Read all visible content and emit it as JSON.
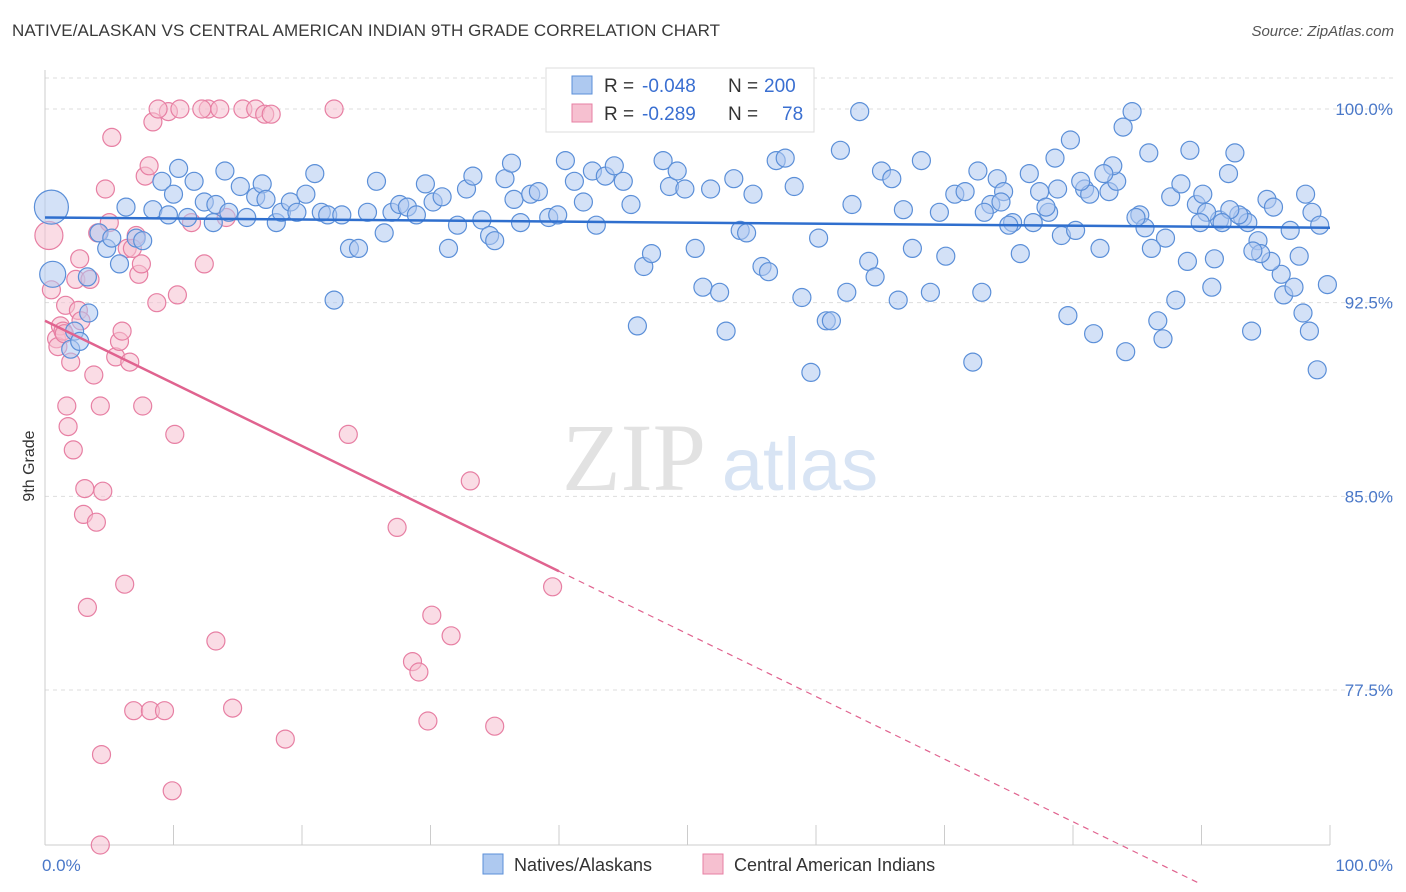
{
  "title": "NATIVE/ALASKAN VS CENTRAL AMERICAN INDIAN 9TH GRADE CORRELATION CHART",
  "source": "Source: ZipAtlas.com",
  "watermark": {
    "zip": "ZIP",
    "atlas": "atlas"
  },
  "colors": {
    "blue_fill": "#aec9f0",
    "blue_stroke": "#5b8fd8",
    "blue_line": "#2f6fce",
    "pink_fill": "#f6c0d0",
    "pink_stroke": "#e77fa3",
    "pink_line": "#e0638f",
    "grid": "#dddddd",
    "tick_label": "#4a78c8"
  },
  "legend_box": {
    "rows": [
      {
        "r_label": "R =",
        "r_value": "-0.048",
        "n_label": "N =",
        "n_value": "200"
      },
      {
        "r_label": "R =",
        "r_value": "-0.289",
        "n_label": "N =",
        "n_value": "78"
      }
    ]
  },
  "chart_data": {
    "type": "scatter",
    "title": "NATIVE/ALASKAN VS CENTRAL AMERICAN INDIAN 9TH GRADE CORRELATION CHART",
    "xlabel": "",
    "ylabel": "9th Grade",
    "xlim": [
      0,
      100
    ],
    "ylim": [
      71.5,
      101.2
    ],
    "x_tick_labels": [
      "0.0%",
      "100.0%"
    ],
    "y_ticks": [
      77.5,
      85.0,
      92.5,
      100.0
    ],
    "y_tick_labels": [
      "77.5%",
      "85.0%",
      "92.5%",
      "100.0%"
    ],
    "grid": true,
    "legend_position": "bottom",
    "series": [
      {
        "name": "Natives/Alaskans",
        "color": "#5b8fd8",
        "r": -0.048,
        "n": 200,
        "trend": {
          "x": [
            0,
            100
          ],
          "y": [
            95.8,
            95.4
          ],
          "dashed_x": null
        },
        "points": [
          [
            0.5,
            96.2
          ],
          [
            0.6,
            93.6
          ],
          [
            2.3,
            91.4
          ],
          [
            2.0,
            90.7
          ],
          [
            3.4,
            92.1
          ],
          [
            2.7,
            91.0
          ],
          [
            3.3,
            93.5
          ],
          [
            4.2,
            95.2
          ],
          [
            4.8,
            94.6
          ],
          [
            5.2,
            95.0
          ],
          [
            5.8,
            94.0
          ],
          [
            6.3,
            96.2
          ],
          [
            7.1,
            95.0
          ],
          [
            7.6,
            94.9
          ],
          [
            8.4,
            96.1
          ],
          [
            9.1,
            97.2
          ],
          [
            9.6,
            95.9
          ],
          [
            10.4,
            97.7
          ],
          [
            10.0,
            96.7
          ],
          [
            11.1,
            95.8
          ],
          [
            11.6,
            97.2
          ],
          [
            12.4,
            96.4
          ],
          [
            13.1,
            95.6
          ],
          [
            13.3,
            96.3
          ],
          [
            14.0,
            97.6
          ],
          [
            14.3,
            96.0
          ],
          [
            15.2,
            97.0
          ],
          [
            15.7,
            95.8
          ],
          [
            16.4,
            96.6
          ],
          [
            16.9,
            97.1
          ],
          [
            17.2,
            96.5
          ],
          [
            18.0,
            95.6
          ],
          [
            18.4,
            96.0
          ],
          [
            19.1,
            96.4
          ],
          [
            19.6,
            96.0
          ],
          [
            20.3,
            96.7
          ],
          [
            21.0,
            97.5
          ],
          [
            21.5,
            96.0
          ],
          [
            22.0,
            95.9
          ],
          [
            22.5,
            92.6
          ],
          [
            23.1,
            95.9
          ],
          [
            23.7,
            94.6
          ],
          [
            24.4,
            94.6
          ],
          [
            25.1,
            96.0
          ],
          [
            25.8,
            97.2
          ],
          [
            26.4,
            95.2
          ],
          [
            27.0,
            96.0
          ],
          [
            27.6,
            96.3
          ],
          [
            28.2,
            96.2
          ],
          [
            28.9,
            95.9
          ],
          [
            29.6,
            97.1
          ],
          [
            30.2,
            96.4
          ],
          [
            30.9,
            96.6
          ],
          [
            31.4,
            94.6
          ],
          [
            32.1,
            95.5
          ],
          [
            32.8,
            96.9
          ],
          [
            33.3,
            97.4
          ],
          [
            34.0,
            95.7
          ],
          [
            34.6,
            95.1
          ],
          [
            35.0,
            94.9
          ],
          [
            35.8,
            97.3
          ],
          [
            36.3,
            97.9
          ],
          [
            36.5,
            96.5
          ],
          [
            37.0,
            95.6
          ],
          [
            37.8,
            96.7
          ],
          [
            38.4,
            96.8
          ],
          [
            39.2,
            95.8
          ],
          [
            39.9,
            95.9
          ],
          [
            40.5,
            98.0
          ],
          [
            41.2,
            97.2
          ],
          [
            41.9,
            96.4
          ],
          [
            42.6,
            97.6
          ],
          [
            42.9,
            95.5
          ],
          [
            43.6,
            97.4
          ],
          [
            44.3,
            97.8
          ],
          [
            45.0,
            97.2
          ],
          [
            45.6,
            96.3
          ],
          [
            46.1,
            91.6
          ],
          [
            46.6,
            93.9
          ],
          [
            47.2,
            94.4
          ],
          [
            48.1,
            98.0
          ],
          [
            48.6,
            97.0
          ],
          [
            49.2,
            97.6
          ],
          [
            49.8,
            96.9
          ],
          [
            50.6,
            94.6
          ],
          [
            51.2,
            93.1
          ],
          [
            51.8,
            96.9
          ],
          [
            52.5,
            92.9
          ],
          [
            53.0,
            91.4
          ],
          [
            53.6,
            97.3
          ],
          [
            54.1,
            95.3
          ],
          [
            54.6,
            95.2
          ],
          [
            55.1,
            96.7
          ],
          [
            55.8,
            93.9
          ],
          [
            56.3,
            93.7
          ],
          [
            56.9,
            98.0
          ],
          [
            57.6,
            98.1
          ],
          [
            58.3,
            97.0
          ],
          [
            58.9,
            92.7
          ],
          [
            59.6,
            89.8
          ],
          [
            60.2,
            95.0
          ],
          [
            60.8,
            91.8
          ],
          [
            61.2,
            91.8
          ],
          [
            61.9,
            98.4
          ],
          [
            62.4,
            92.9
          ],
          [
            62.8,
            96.3
          ],
          [
            63.4,
            99.9
          ],
          [
            64.1,
            94.1
          ],
          [
            64.6,
            93.5
          ],
          [
            65.1,
            97.6
          ],
          [
            65.9,
            97.3
          ],
          [
            66.4,
            92.6
          ],
          [
            66.8,
            96.1
          ],
          [
            67.5,
            94.6
          ],
          [
            68.2,
            98.0
          ],
          [
            68.9,
            92.9
          ],
          [
            69.6,
            96.0
          ],
          [
            70.1,
            94.3
          ],
          [
            70.8,
            96.7
          ],
          [
            71.6,
            96.8
          ],
          [
            72.2,
            90.2
          ],
          [
            72.9,
            92.9
          ],
          [
            73.6,
            96.3
          ],
          [
            74.1,
            97.3
          ],
          [
            74.6,
            96.8
          ],
          [
            75.3,
            95.6
          ],
          [
            75.9,
            94.4
          ],
          [
            76.6,
            97.5
          ],
          [
            77.4,
            96.8
          ],
          [
            78.1,
            96.0
          ],
          [
            78.6,
            98.1
          ],
          [
            79.1,
            95.1
          ],
          [
            79.6,
            92.0
          ],
          [
            80.2,
            95.3
          ],
          [
            80.9,
            96.9
          ],
          [
            81.6,
            91.3
          ],
          [
            82.1,
            94.6
          ],
          [
            82.8,
            96.8
          ],
          [
            83.4,
            97.2
          ],
          [
            84.1,
            90.6
          ],
          [
            84.6,
            99.9
          ],
          [
            85.2,
            95.9
          ],
          [
            85.9,
            98.3
          ],
          [
            86.6,
            91.8
          ],
          [
            87.2,
            95.0
          ],
          [
            87.6,
            96.6
          ],
          [
            88.4,
            97.1
          ],
          [
            89.1,
            98.4
          ],
          [
            89.6,
            96.3
          ],
          [
            90.1,
            96.7
          ],
          [
            90.8,
            93.1
          ],
          [
            91.4,
            95.7
          ],
          [
            92.1,
            97.5
          ],
          [
            92.6,
            98.3
          ],
          [
            93.2,
            95.8
          ],
          [
            93.9,
            91.4
          ],
          [
            94.4,
            94.9
          ],
          [
            95.1,
            96.5
          ],
          [
            95.6,
            96.2
          ],
          [
            96.4,
            92.8
          ],
          [
            96.9,
            95.3
          ],
          [
            97.6,
            94.3
          ],
          [
            98.1,
            96.7
          ],
          [
            98.6,
            96.0
          ],
          [
            99.2,
            95.5
          ],
          [
            99.8,
            93.2
          ],
          [
            99.0,
            89.9
          ],
          [
            98.4,
            91.4
          ],
          [
            97.9,
            92.1
          ],
          [
            97.2,
            93.1
          ],
          [
            96.2,
            93.6
          ],
          [
            95.4,
            94.1
          ],
          [
            94.6,
            94.4
          ],
          [
            94.0,
            94.5
          ],
          [
            93.6,
            95.6
          ],
          [
            92.9,
            95.9
          ],
          [
            92.2,
            96.1
          ],
          [
            91.6,
            95.6
          ],
          [
            91.0,
            94.2
          ],
          [
            90.4,
            96.0
          ],
          [
            89.9,
            95.6
          ],
          [
            88.9,
            94.1
          ],
          [
            88.0,
            92.6
          ],
          [
            87.0,
            91.1
          ],
          [
            86.1,
            94.6
          ],
          [
            85.6,
            95.4
          ],
          [
            84.9,
            95.8
          ],
          [
            83.9,
            99.3
          ],
          [
            83.1,
            97.8
          ],
          [
            82.4,
            97.5
          ],
          [
            81.3,
            96.7
          ],
          [
            80.6,
            97.2
          ],
          [
            79.8,
            98.8
          ],
          [
            78.8,
            96.9
          ],
          [
            77.9,
            96.2
          ],
          [
            76.9,
            95.6
          ],
          [
            75.0,
            95.5
          ],
          [
            74.4,
            96.4
          ],
          [
            73.1,
            96.0
          ],
          [
            72.6,
            97.6
          ]
        ]
      },
      {
        "name": "Central American Indians",
        "color": "#e77fa3",
        "r": -0.289,
        "n": 78,
        "trend": {
          "x": [
            0,
            40.0
          ],
          "y": [
            91.8,
            82.1
          ],
          "dashed_x": [
            40.0,
            90.0
          ]
        },
        "points": [
          [
            0.3,
            95.1
          ],
          [
            0.5,
            93.0
          ],
          [
            0.9,
            91.1
          ],
          [
            1.0,
            90.8
          ],
          [
            1.2,
            91.6
          ],
          [
            1.4,
            91.4
          ],
          [
            1.5,
            91.3
          ],
          [
            1.6,
            92.4
          ],
          [
            1.7,
            88.5
          ],
          [
            1.8,
            87.7
          ],
          [
            2.0,
            90.2
          ],
          [
            2.2,
            86.8
          ],
          [
            2.4,
            93.4
          ],
          [
            2.7,
            94.2
          ],
          [
            2.6,
            92.2
          ],
          [
            2.8,
            91.8
          ],
          [
            3.0,
            84.3
          ],
          [
            3.1,
            85.3
          ],
          [
            3.3,
            80.7
          ],
          [
            3.5,
            93.4
          ],
          [
            3.8,
            89.7
          ],
          [
            4.0,
            84.0
          ],
          [
            4.1,
            95.2
          ],
          [
            4.3,
            88.5
          ],
          [
            4.5,
            85.2
          ],
          [
            4.7,
            96.9
          ],
          [
            5.0,
            95.6
          ],
          [
            5.2,
            98.9
          ],
          [
            5.5,
            90.4
          ],
          [
            5.8,
            91.0
          ],
          [
            6.0,
            91.4
          ],
          [
            6.2,
            81.6
          ],
          [
            6.4,
            94.6
          ],
          [
            6.6,
            90.2
          ],
          [
            6.9,
            76.7
          ],
          [
            7.1,
            95.1
          ],
          [
            7.3,
            93.6
          ],
          [
            7.5,
            94.0
          ],
          [
            7.6,
            88.5
          ],
          [
            7.8,
            97.4
          ],
          [
            8.1,
            97.8
          ],
          [
            8.2,
            76.7
          ],
          [
            8.4,
            99.5
          ],
          [
            8.7,
            92.5
          ],
          [
            9.3,
            76.7
          ],
          [
            9.6,
            99.9
          ],
          [
            9.9,
            73.6
          ],
          [
            10.1,
            87.4
          ],
          [
            10.3,
            92.8
          ],
          [
            10.5,
            100.0
          ],
          [
            11.4,
            95.6
          ],
          [
            12.4,
            94.0
          ],
          [
            12.7,
            100.0
          ],
          [
            13.3,
            79.4
          ],
          [
            13.6,
            100.0
          ],
          [
            14.1,
            95.8
          ],
          [
            14.6,
            76.8
          ],
          [
            15.4,
            100.0
          ],
          [
            16.4,
            100.0
          ],
          [
            17.1,
            99.8
          ],
          [
            17.6,
            99.8
          ],
          [
            18.7,
            75.6
          ],
          [
            22.5,
            100.0
          ],
          [
            23.6,
            87.4
          ],
          [
            27.4,
            83.8
          ],
          [
            28.6,
            78.6
          ],
          [
            29.1,
            78.2
          ],
          [
            29.8,
            76.3
          ],
          [
            30.1,
            80.4
          ],
          [
            31.6,
            79.6
          ],
          [
            33.1,
            85.6
          ],
          [
            35.0,
            76.1
          ],
          [
            39.5,
            81.5
          ],
          [
            4.4,
            75.0
          ],
          [
            4.3,
            71.5
          ],
          [
            6.8,
            94.6
          ],
          [
            12.2,
            100.0
          ],
          [
            8.8,
            100.0
          ]
        ]
      }
    ]
  },
  "bottom_legend": [
    {
      "label": "Natives/Alaskans"
    },
    {
      "label": "Central American Indians"
    }
  ]
}
